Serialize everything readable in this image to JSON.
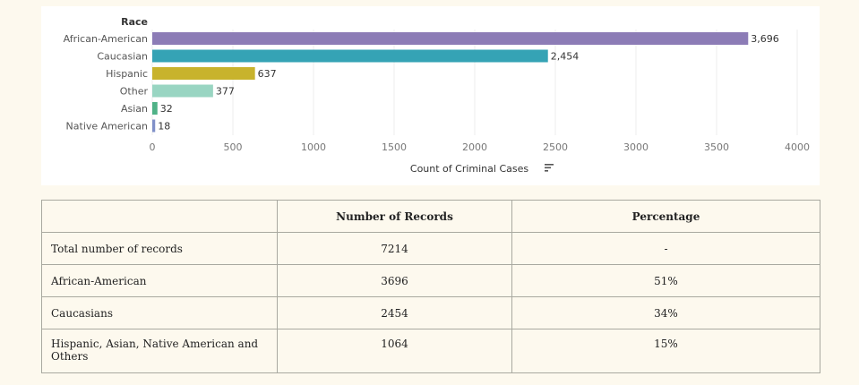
{
  "chart_data": {
    "type": "bar",
    "orientation": "horizontal",
    "category_axis_title": "Race",
    "xlabel": "Count of Criminal Cases",
    "xlim": [
      0,
      4000
    ],
    "xticks": [
      "0",
      "500",
      "1000",
      "1500",
      "2000",
      "2500",
      "3000",
      "3500",
      "4000"
    ],
    "grid": true,
    "categories": [
      "African-American",
      "Caucasian",
      "Hispanic",
      "Other",
      "Asian",
      "Native American"
    ],
    "values": [
      3696,
      2454,
      637,
      377,
      32,
      18
    ],
    "value_labels": [
      "3,696",
      "2,454",
      "637",
      "377",
      "32",
      "18"
    ],
    "colors": [
      "#8c7cb6",
      "#35a3b5",
      "#c8b32c",
      "#99d5c2",
      "#4fb287",
      "#8090c8"
    ]
  },
  "table": {
    "headers": [
      "",
      "Number of Records",
      "Percentage"
    ],
    "rows": [
      {
        "label": "Total number of records",
        "count": "7214",
        "percent": "-"
      },
      {
        "label": "African-American",
        "count": "3696",
        "percent": "51%"
      },
      {
        "label": "Caucasians",
        "count": "2454",
        "percent": "34%"
      },
      {
        "label": "Hispanic, Asian, Native American and Others",
        "count": "1064",
        "percent": "15%"
      }
    ]
  }
}
